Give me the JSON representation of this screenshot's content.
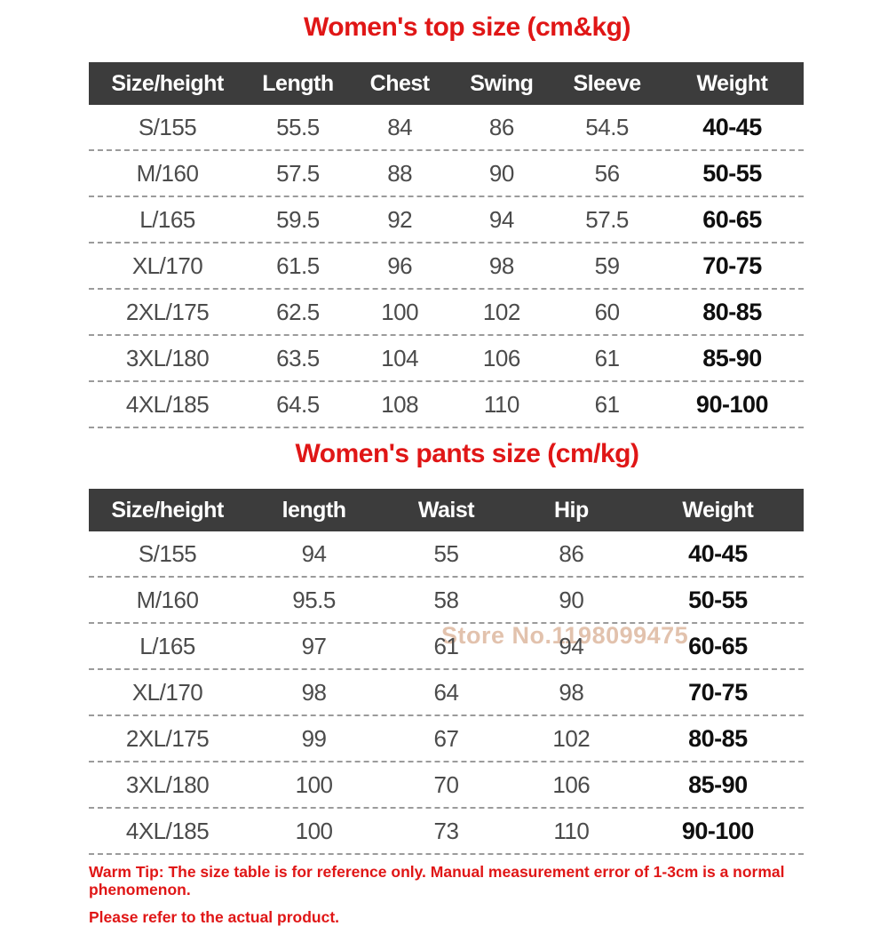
{
  "colors": {
    "title_red": "#e01616",
    "header_bg": "#3c3c3c",
    "header_text": "#ffffff",
    "cell_text": "#4b4b4b",
    "weight_text": "#0f0f0f",
    "divider": "#9b9b9b",
    "watermark": "#cf9a78"
  },
  "top_table": {
    "title": "Women's top size (cm&kg)",
    "columns": [
      "Size/height",
      "Length",
      "Chest",
      "Swing",
      "Sleeve",
      "Weight"
    ],
    "rows": [
      [
        "S/155",
        "55.5",
        "84",
        "86",
        "54.5",
        "40-45"
      ],
      [
        "M/160",
        "57.5",
        "88",
        "90",
        "56",
        "50-55"
      ],
      [
        "L/165",
        "59.5",
        "92",
        "94",
        "57.5",
        "60-65"
      ],
      [
        "XL/170",
        "61.5",
        "96",
        "98",
        "59",
        "70-75"
      ],
      [
        "2XL/175",
        "62.5",
        "100",
        "102",
        "60",
        "80-85"
      ],
      [
        "3XL/180",
        "63.5",
        "104",
        "106",
        "61",
        "85-90"
      ],
      [
        "4XL/185",
        "64.5",
        "108",
        "110",
        "61",
        "90-100"
      ]
    ]
  },
  "pants_table": {
    "title": "Women's pants size (cm/kg)",
    "columns": [
      "Size/height",
      "length",
      "Waist",
      "Hip",
      "Weight"
    ],
    "rows": [
      [
        "S/155",
        "94",
        "55",
        "86",
        "40-45"
      ],
      [
        "M/160",
        "95.5",
        "58",
        "90",
        "50-55"
      ],
      [
        "L/165",
        "97",
        "61",
        "94",
        "60-65"
      ],
      [
        "XL/170",
        "98",
        "64",
        "98",
        "70-75"
      ],
      [
        "2XL/175",
        "99",
        "67",
        "102",
        "80-85"
      ],
      [
        "3XL/180",
        "100",
        "70",
        "106",
        "85-90"
      ],
      [
        "4XL/185",
        "100",
        "73",
        "110",
        "90-100"
      ]
    ]
  },
  "watermark": "Store No.1198099475",
  "footer": {
    "line1": "Warm Tip: The size table is for reference only. Manual measurement error of 1-3cm is a normal phenomenon.",
    "line2": "Please refer to the actual product."
  }
}
